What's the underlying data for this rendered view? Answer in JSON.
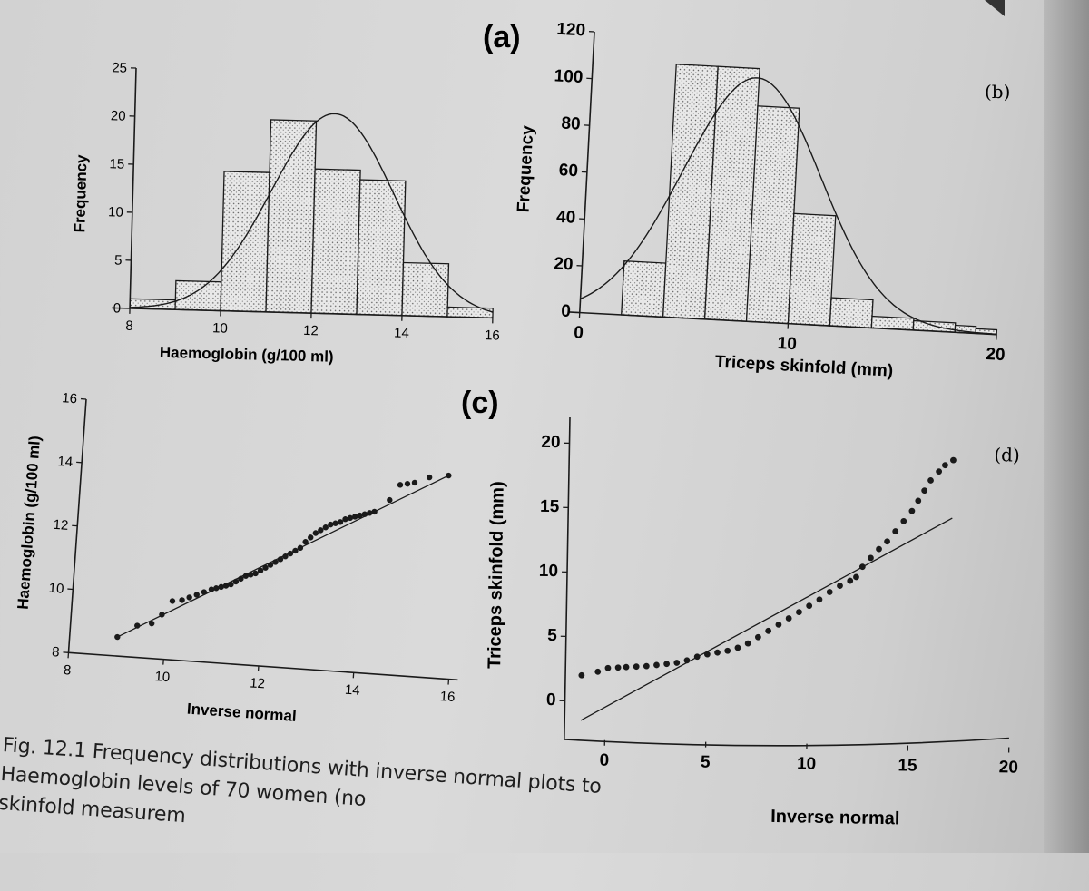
{
  "chart_data": [
    {
      "id": "a",
      "type": "bar",
      "panel_label": "(a)",
      "xlabel": "Haemoglobin (g/100 ml)",
      "ylabel": "Frequency",
      "xlim": [
        8,
        16
      ],
      "ylim": [
        0,
        25
      ],
      "xticks": [
        "8",
        "10",
        "12",
        "14",
        "16"
      ],
      "yticks": [
        "0",
        "5",
        "10",
        "15",
        "20",
        "25"
      ],
      "bins": [
        [
          8,
          9
        ],
        [
          9,
          10
        ],
        [
          10,
          11
        ],
        [
          11,
          12
        ],
        [
          12,
          13
        ],
        [
          13,
          14
        ],
        [
          14,
          15
        ],
        [
          15,
          16
        ]
      ],
      "values": [
        1,
        3,
        14.5,
        20,
        15,
        14,
        5.5,
        1
      ],
      "fit": {
        "type": "normal",
        "mean": 12.4,
        "sd": 1.35,
        "peak": 20.8
      }
    },
    {
      "id": "b",
      "type": "bar",
      "panel_label": "(b)",
      "xlabel": "Triceps skinfold (mm)",
      "ylabel": "Frequency",
      "xlim": [
        0,
        20
      ],
      "ylim": [
        0,
        120
      ],
      "xticks": [
        "0",
        "10",
        "20"
      ],
      "yticks": [
        "0",
        "20",
        "40",
        "60",
        "80",
        "100",
        "120"
      ],
      "bins": [
        [
          2,
          4
        ],
        [
          4,
          6
        ],
        [
          6,
          8
        ],
        [
          8,
          10
        ],
        [
          10,
          12
        ],
        [
          12,
          14
        ],
        [
          14,
          16
        ],
        [
          16,
          18
        ],
        [
          18,
          19
        ],
        [
          19,
          20
        ]
      ],
      "values": [
        23,
        108,
        108,
        92,
        47,
        12,
        5,
        4,
        3,
        2
      ],
      "fit": {
        "type": "normal",
        "mean": 7.9,
        "sd": 3.3,
        "peak": 104
      }
    },
    {
      "id": "c",
      "type": "scatter",
      "panel_label": "(c)",
      "xlabel": "Inverse normal",
      "ylabel": "Haemoglobin (g/100 ml)",
      "xlim": [
        8,
        16
      ],
      "ylim": [
        8,
        16
      ],
      "xticks": [
        "8",
        "10",
        "12",
        "14",
        "16"
      ],
      "yticks": [
        "8",
        "10",
        "12",
        "14",
        "16"
      ],
      "points": [
        [
          9.0,
          8.6
        ],
        [
          9.4,
          9.0
        ],
        [
          9.7,
          9.1
        ],
        [
          9.9,
          9.4
        ],
        [
          10.1,
          9.85
        ],
        [
          10.3,
          9.9
        ],
        [
          10.45,
          10.0
        ],
        [
          10.6,
          10.1
        ],
        [
          10.75,
          10.2
        ],
        [
          10.9,
          10.3
        ],
        [
          11.0,
          10.35
        ],
        [
          11.1,
          10.4
        ],
        [
          11.2,
          10.45
        ],
        [
          11.3,
          10.5
        ],
        [
          11.4,
          10.6
        ],
        [
          11.5,
          10.7
        ],
        [
          11.6,
          10.8
        ],
        [
          11.7,
          10.85
        ],
        [
          11.8,
          10.9
        ],
        [
          11.9,
          11.0
        ],
        [
          12.0,
          11.1
        ],
        [
          12.1,
          11.2
        ],
        [
          12.2,
          11.3
        ],
        [
          12.3,
          11.4
        ],
        [
          12.4,
          11.5
        ],
        [
          12.5,
          11.6
        ],
        [
          12.6,
          11.7
        ],
        [
          12.7,
          11.8
        ],
        [
          12.8,
          12.0
        ],
        [
          12.9,
          12.15
        ],
        [
          13.0,
          12.3
        ],
        [
          13.1,
          12.4
        ],
        [
          13.2,
          12.5
        ],
        [
          13.3,
          12.6
        ],
        [
          13.4,
          12.65
        ],
        [
          13.5,
          12.7
        ],
        [
          13.6,
          12.8
        ],
        [
          13.7,
          12.85
        ],
        [
          13.8,
          12.9
        ],
        [
          13.9,
          12.95
        ],
        [
          14.0,
          13.0
        ],
        [
          14.1,
          13.05
        ],
        [
          14.2,
          13.1
        ],
        [
          14.5,
          13.5
        ],
        [
          14.7,
          14.0
        ],
        [
          14.85,
          14.05
        ],
        [
          15.0,
          14.1
        ],
        [
          15.3,
          14.3
        ],
        [
          15.7,
          14.4
        ]
      ],
      "fit_line": [
        [
          9.0,
          8.6
        ],
        [
          15.7,
          14.4
        ]
      ]
    },
    {
      "id": "d",
      "type": "scatter",
      "panel_label": "(d)",
      "xlabel": "Inverse normal",
      "ylabel": "Triceps skinfold (mm)",
      "xlim": [
        -2,
        20
      ],
      "ylim": [
        -3,
        22
      ],
      "xticks": [
        "0",
        "5",
        "10",
        "15",
        "20"
      ],
      "yticks": [
        "0",
        "5",
        "10",
        "15",
        "20"
      ],
      "points": [
        [
          -1.2,
          2.0
        ],
        [
          -0.4,
          2.3
        ],
        [
          0.1,
          2.6
        ],
        [
          0.6,
          2.65
        ],
        [
          1.0,
          2.7
        ],
        [
          1.5,
          2.75
        ],
        [
          2.0,
          2.8
        ],
        [
          2.5,
          2.9
        ],
        [
          3.0,
          3.0
        ],
        [
          3.5,
          3.1
        ],
        [
          4.0,
          3.3
        ],
        [
          4.5,
          3.6
        ],
        [
          5.0,
          3.8
        ],
        [
          5.5,
          3.95
        ],
        [
          6.0,
          4.1
        ],
        [
          6.5,
          4.35
        ],
        [
          7.0,
          4.7
        ],
        [
          7.5,
          5.2
        ],
        [
          8.0,
          5.7
        ],
        [
          8.5,
          6.2
        ],
        [
          9.0,
          6.7
        ],
        [
          9.5,
          7.2
        ],
        [
          10.0,
          7.7
        ],
        [
          10.5,
          8.2
        ],
        [
          11.0,
          8.8
        ],
        [
          11.5,
          9.3
        ],
        [
          12.0,
          9.7
        ],
        [
          12.3,
          10.0
        ],
        [
          12.6,
          10.8
        ],
        [
          13.0,
          11.5
        ],
        [
          13.4,
          12.2
        ],
        [
          13.8,
          12.8
        ],
        [
          14.2,
          13.6
        ],
        [
          14.6,
          14.4
        ],
        [
          15.0,
          15.2
        ],
        [
          15.3,
          16.0
        ],
        [
          15.6,
          16.8
        ],
        [
          15.9,
          17.6
        ],
        [
          16.3,
          18.3
        ],
        [
          16.6,
          18.8
        ],
        [
          17.0,
          19.2
        ]
      ],
      "fit_line": [
        [
          -1.2,
          -1.5
        ],
        [
          17.0,
          14.7
        ]
      ]
    }
  ],
  "corner_label": "(b)",
  "caption": {
    "lines": [
      "Fig. 12.1  Frequency distributions with inverse normal plots to",
      "Haemoglobin levels of 70 women (no",
      "skinfold measurem"
    ]
  }
}
